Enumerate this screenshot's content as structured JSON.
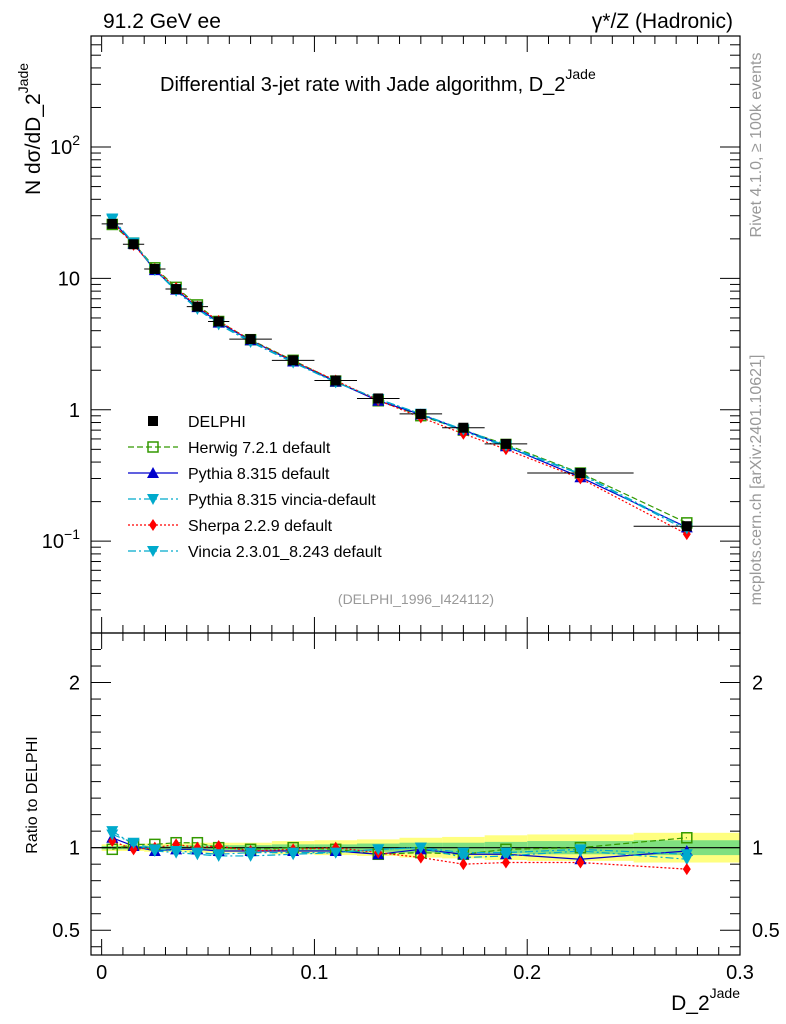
{
  "header": {
    "left": "91.2 GeV ee",
    "right": "γ*/Z (Hadronic)"
  },
  "side_text": {
    "rivet": "Rivet 4.1.0, ≥ 100k events",
    "mcplots": "mcplots.cern.ch [arXiv:2401.10621]"
  },
  "chart_data": {
    "type": "line",
    "title": "Differential 3-jet rate with Jade algorithm, D_2",
    "title_sup": "Jade",
    "analysis_id": "(DELPHI_1996_I424112)",
    "xlabel": "D_2",
    "xlabel_sup": "Jade",
    "ylabel_top": "N  dσ/dD_2",
    "ylabel_top_sup": "Jade",
    "ylabel_bottom": "Ratio to DELPHI",
    "xlim": [
      -0.005,
      0.3
    ],
    "ylim_top": [
      0.02,
      700
    ],
    "ylim_bottom": [
      0.35,
      2.3
    ],
    "x_ticks": [
      {
        "value": 0,
        "label": "0"
      },
      {
        "value": 0.1,
        "label": "0.1"
      },
      {
        "value": 0.2,
        "label": "0.2"
      },
      {
        "value": 0.3,
        "label": "0.3"
      }
    ],
    "y_ticks_top": [
      {
        "value": 0.1,
        "base": "10",
        "exp": "−1"
      },
      {
        "value": 1,
        "base": "1",
        "exp": ""
      },
      {
        "value": 10,
        "base": "10",
        "exp": ""
      },
      {
        "value": 100,
        "base": "10",
        "exp": "2"
      }
    ],
    "y_ticks_bottom": [
      {
        "value": 0.5,
        "label": "0.5"
      },
      {
        "value": 1,
        "label": "1"
      },
      {
        "value": 2,
        "label": "2"
      }
    ],
    "x": [
      0.005,
      0.015,
      0.025,
      0.035,
      0.045,
      0.055,
      0.07,
      0.09,
      0.11,
      0.13,
      0.15,
      0.17,
      0.19,
      0.225,
      0.275
    ],
    "x_bins": [
      [
        0.0,
        0.01
      ],
      [
        0.01,
        0.02
      ],
      [
        0.02,
        0.03
      ],
      [
        0.03,
        0.04
      ],
      [
        0.04,
        0.05
      ],
      [
        0.05,
        0.06
      ],
      [
        0.06,
        0.08
      ],
      [
        0.08,
        0.1
      ],
      [
        0.1,
        0.12
      ],
      [
        0.12,
        0.14
      ],
      [
        0.14,
        0.16
      ],
      [
        0.16,
        0.18
      ],
      [
        0.18,
        0.2
      ],
      [
        0.2,
        0.25
      ],
      [
        0.25,
        0.3
      ]
    ],
    "band_inner": [
      0.01,
      0.01,
      0.012,
      0.012,
      0.015,
      0.015,
      0.015,
      0.02,
      0.02,
      0.025,
      0.03,
      0.03,
      0.035,
      0.04,
      0.045
    ],
    "band_outer": [
      0.02,
      0.02,
      0.025,
      0.025,
      0.03,
      0.03,
      0.03,
      0.04,
      0.045,
      0.05,
      0.06,
      0.065,
      0.075,
      0.08,
      0.09
    ],
    "data": {
      "name": "DELPHI",
      "values": [
        26.0,
        18.2,
        11.8,
        8.3,
        6.1,
        4.7,
        3.45,
        2.38,
        1.67,
        1.22,
        0.93,
        0.73,
        0.55,
        0.33,
        0.13
      ],
      "color": "#000000"
    },
    "series": [
      {
        "name": "Herwig 7.2.1 default",
        "color": "#339900",
        "dash": "6,3",
        "marker": "open-square",
        "ratio": [
          0.99,
          1.02,
          1.02,
          1.03,
          1.03,
          1.0,
          0.99,
          1.0,
          0.99,
          0.96,
          0.97,
          0.96,
          0.99,
          1.0,
          1.06
        ]
      },
      {
        "name": "Pythia 8.315 default",
        "color": "#0000cc",
        "dash": "",
        "marker": "triangle-up",
        "ratio": [
          1.06,
          1.01,
          0.98,
          0.99,
          0.99,
          0.98,
          0.98,
          0.98,
          0.98,
          0.96,
          0.99,
          0.96,
          0.96,
          0.93,
          0.98
        ]
      },
      {
        "name": "Pythia 8.315 vincia-default",
        "color": "#00aacc",
        "dash": "8,3,2,3",
        "marker": "triangle-down",
        "ratio": [
          1.1,
          1.02,
          0.98,
          0.97,
          0.96,
          0.95,
          0.95,
          0.96,
          0.97,
          0.99,
          1.0,
          0.94,
          0.95,
          0.98,
          0.93
        ]
      },
      {
        "name": "Sherpa 2.2.9 default",
        "color": "#ff0000",
        "dash": "2,2",
        "marker": "diamond",
        "ratio": [
          1.04,
          0.99,
          1.0,
          1.02,
          1.0,
          1.01,
          0.98,
          0.99,
          1.0,
          0.97,
          0.94,
          0.9,
          0.91,
          0.91,
          0.87
        ]
      },
      {
        "name": "Vincia 2.3.01_8.243 default",
        "color": "#00aacc",
        "dash": "8,3,2,3",
        "marker": "triangle-down",
        "ratio": [
          1.08,
          1.03,
          0.99,
          0.98,
          0.97,
          0.96,
          0.97,
          0.97,
          0.97,
          0.99,
          1.0,
          0.97,
          0.97,
          0.99,
          0.96
        ]
      }
    ]
  }
}
